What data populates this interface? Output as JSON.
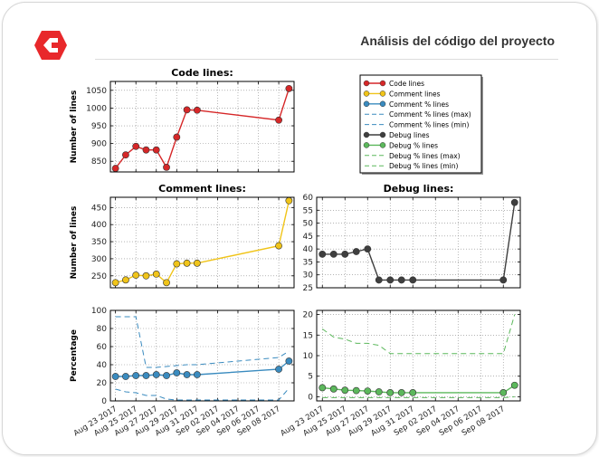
{
  "header": {
    "title": "Análisis del código del proyecto"
  },
  "logo": {
    "icon": "brand-logo-icon",
    "color": "#e8282b"
  },
  "colors": {
    "code": "#d62728",
    "comment": "#f0c419",
    "comment_pct": "#3a8bbf",
    "debug": "#3f3f3f",
    "debug_pct": "#5cb85c"
  },
  "x_dates": [
    "Aug 23 2017",
    "Aug 25 2017",
    "Aug 27 2017",
    "Aug 29 2017",
    "Aug 31 2017",
    "Sep 02 2017",
    "Sep 04 2017",
    "Sep 06 2017",
    "Sep 08 2017"
  ],
  "chart_data": [
    {
      "id": "code",
      "type": "line",
      "title": "Code lines:",
      "ylabel": "Number of lines",
      "ylim": [
        820,
        1075
      ],
      "yticks": [
        850,
        900,
        950,
        1000,
        1050
      ],
      "xlim": [
        22.5,
        40.5
      ],
      "grid": true,
      "series": [
        {
          "name": "Code lines",
          "color": "#d62728",
          "style": "solid",
          "markers": true,
          "x": [
            23,
            24,
            25,
            26,
            27,
            28,
            29,
            30,
            31,
            39,
            40
          ],
          "y": [
            830,
            868,
            892,
            882,
            882,
            833,
            918,
            995,
            994,
            966,
            1055
          ]
        }
      ]
    },
    {
      "id": "comment",
      "type": "line",
      "title": "Comment lines:",
      "ylabel": "Number of lines",
      "ylim": [
        215,
        480
      ],
      "yticks": [
        250,
        300,
        350,
        400,
        450
      ],
      "xlim": [
        22.5,
        40.5
      ],
      "grid": true,
      "series": [
        {
          "name": "Comment lines",
          "color": "#f0c419",
          "style": "solid",
          "markers": true,
          "x": [
            23,
            24,
            25,
            26,
            27,
            28,
            29,
            30,
            31,
            39,
            40
          ],
          "y": [
            230,
            238,
            252,
            250,
            255,
            230,
            285,
            287,
            287,
            338,
            470
          ]
        }
      ]
    },
    {
      "id": "debug",
      "type": "line",
      "title": "Debug lines:",
      "ylabel": "",
      "ylim": [
        25,
        60
      ],
      "yticks": [
        25,
        30,
        35,
        40,
        45,
        50,
        55,
        60
      ],
      "xlim": [
        22.5,
        40.5
      ],
      "grid": true,
      "series": [
        {
          "name": "Debug lines",
          "color": "#3f3f3f",
          "style": "solid",
          "markers": true,
          "x": [
            23,
            24,
            25,
            26,
            27,
            28,
            29,
            30,
            31,
            39,
            40
          ],
          "y": [
            38,
            38,
            38,
            39,
            40,
            28,
            28,
            28,
            28,
            28,
            58
          ]
        }
      ]
    },
    {
      "id": "comment_pct",
      "type": "line",
      "title": "",
      "ylabel": "Percentage",
      "ylim": [
        0,
        100
      ],
      "yticks": [
        0,
        20,
        40,
        60,
        80,
        100
      ],
      "xlim": [
        22.5,
        40.5
      ],
      "grid": true,
      "series": [
        {
          "name": "Comment % lines",
          "color": "#3a8bbf",
          "style": "solid",
          "markers": true,
          "x": [
            23,
            24,
            25,
            26,
            27,
            28,
            29,
            30,
            31,
            39,
            40
          ],
          "y": [
            27,
            27,
            28,
            28,
            29,
            28,
            31,
            29,
            29,
            35,
            44
          ]
        },
        {
          "name": "Comment % lines (max)",
          "color": "#3a8bbf",
          "style": "dashed",
          "markers": false,
          "x": [
            23,
            24,
            25,
            26,
            27,
            28,
            29,
            30,
            31,
            39,
            40
          ],
          "y": [
            93,
            93,
            93,
            37,
            37,
            38,
            39,
            40,
            40,
            48,
            55
          ]
        },
        {
          "name": "Comment % lines (min)",
          "color": "#3a8bbf",
          "style": "dashed",
          "markers": false,
          "x": [
            23,
            24,
            25,
            26,
            27,
            28,
            29,
            30,
            31,
            39,
            40
          ],
          "y": [
            13,
            10,
            9,
            6,
            6,
            2,
            1,
            1,
            1,
            1,
            14
          ]
        }
      ]
    },
    {
      "id": "debug_pct",
      "type": "line",
      "title": "",
      "ylabel": "",
      "ylim": [
        -1,
        21
      ],
      "yticks": [
        0,
        5,
        10,
        15,
        20
      ],
      "xlim": [
        22.5,
        40.5
      ],
      "grid": true,
      "series": [
        {
          "name": "Debug % lines",
          "color": "#5cb85c",
          "style": "solid",
          "markers": true,
          "x": [
            23,
            24,
            25,
            26,
            27,
            28,
            29,
            30,
            31,
            39,
            40
          ],
          "y": [
            2.2,
            1.9,
            1.6,
            1.5,
            1.4,
            1.2,
            1.0,
            1.0,
            1.0,
            1.0,
            2.8
          ]
        },
        {
          "name": "Debug % lines (max)",
          "color": "#5cb85c",
          "style": "dashed",
          "markers": false,
          "x": [
            23,
            24,
            25,
            26,
            27,
            28,
            29,
            30,
            31,
            39,
            40
          ],
          "y": [
            16.5,
            14.5,
            14,
            13,
            13,
            12.5,
            10.5,
            10.5,
            10.5,
            10.5,
            20
          ]
        },
        {
          "name": "Debug % lines (min)",
          "color": "#5cb85c",
          "style": "dashed",
          "markers": false,
          "x": [
            23,
            24,
            25,
            26,
            27,
            28,
            29,
            30,
            31,
            39,
            40
          ],
          "y": [
            -0.2,
            -0.2,
            -0.2,
            -0.2,
            -0.2,
            -0.2,
            -0.2,
            -0.2,
            -0.2,
            -0.2,
            0
          ]
        }
      ]
    }
  ],
  "legend": {
    "placement": "top-right",
    "entries": [
      {
        "label": "Code lines",
        "color": "#d62728",
        "style": "solid",
        "marker": true
      },
      {
        "label": "Comment lines",
        "color": "#f0c419",
        "style": "solid",
        "marker": true
      },
      {
        "label": "Comment % lines",
        "color": "#3a8bbf",
        "style": "solid",
        "marker": true
      },
      {
        "label": "Comment % lines (max)",
        "color": "#3a8bbf",
        "style": "dashed",
        "marker": false
      },
      {
        "label": "Comment % lines (min)",
        "color": "#3a8bbf",
        "style": "dashed",
        "marker": false
      },
      {
        "label": "Debug lines",
        "color": "#3f3f3f",
        "style": "solid",
        "marker": true
      },
      {
        "label": "Debug % lines",
        "color": "#5cb85c",
        "style": "solid",
        "marker": true
      },
      {
        "label": "Debug % lines (max)",
        "color": "#5cb85c",
        "style": "dashed",
        "marker": false
      },
      {
        "label": "Debug % lines (min)",
        "color": "#5cb85c",
        "style": "dashed",
        "marker": false
      }
    ]
  }
}
